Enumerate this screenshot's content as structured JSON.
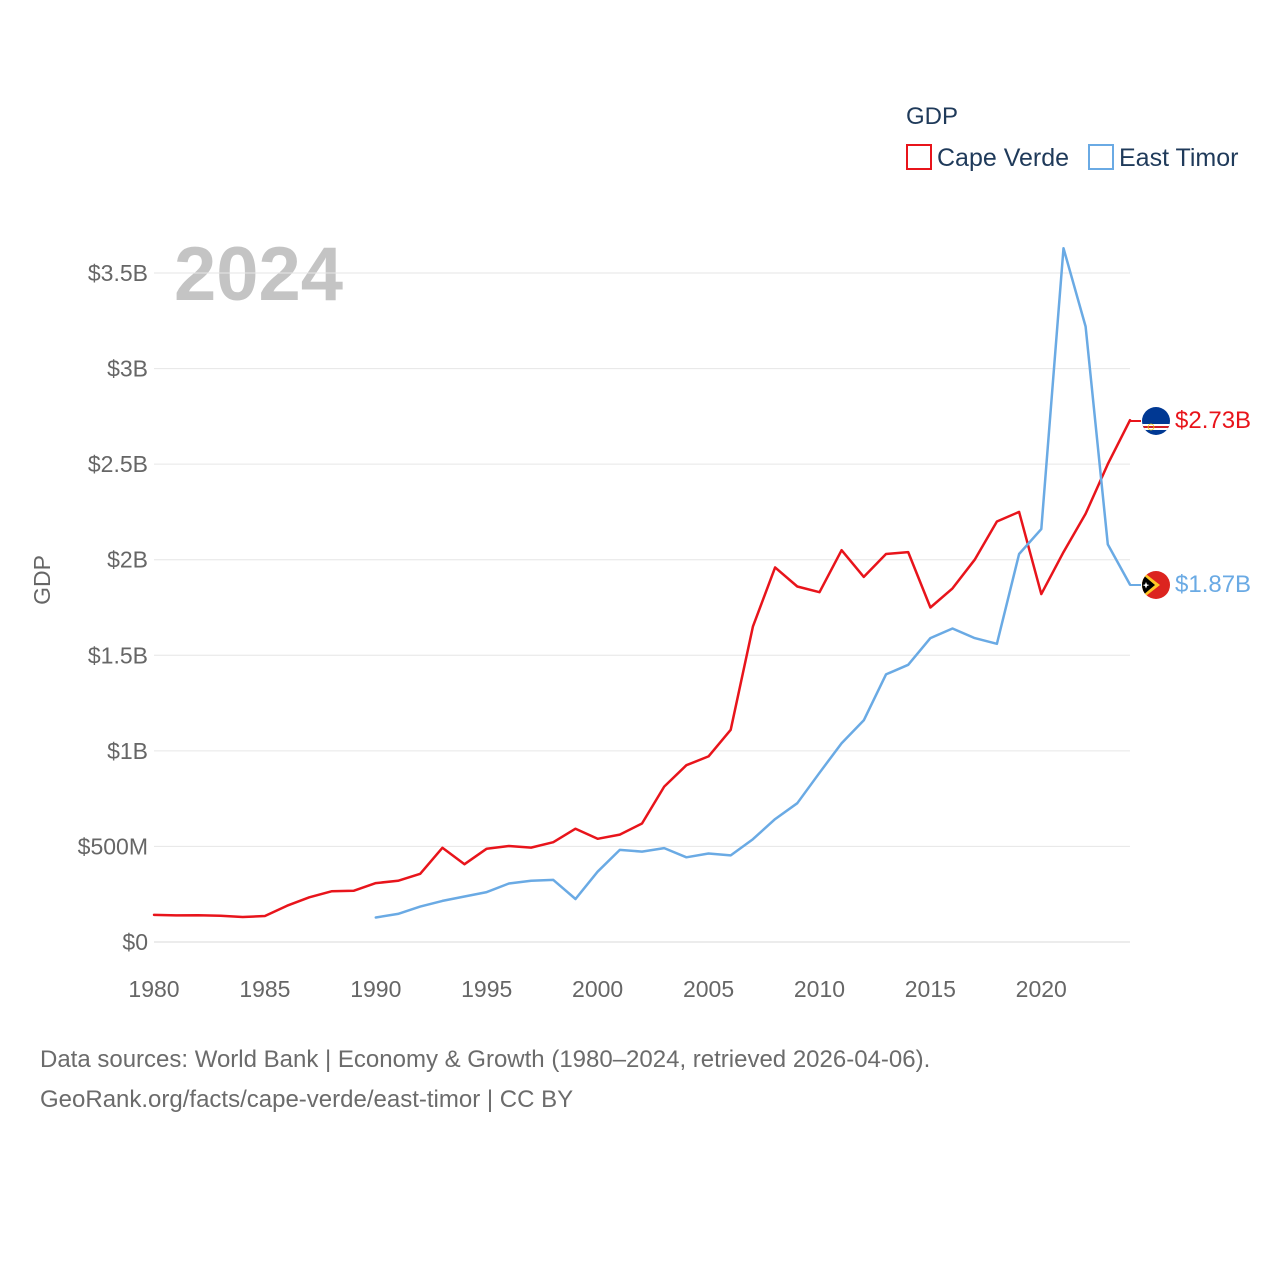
{
  "chart_data": {
    "type": "line",
    "ylabel": "GDP",
    "legend_title": "GDP",
    "legend_position": "top-right",
    "year_label": "2024",
    "ylim": [
      0,
      3500000000
    ],
    "xlim": [
      1980,
      2024
    ],
    "y_ticks": [
      {
        "value": 0,
        "label": "$0"
      },
      {
        "value": 500000000,
        "label": "$500M"
      },
      {
        "value": 1000000000,
        "label": "$1B"
      },
      {
        "value": 1500000000,
        "label": "$1.5B"
      },
      {
        "value": 2000000000,
        "label": "$2B"
      },
      {
        "value": 2500000000,
        "label": "$2.5B"
      },
      {
        "value": 3000000000,
        "label": "$3B"
      },
      {
        "value": 3500000000,
        "label": "$3.5B"
      }
    ],
    "x_ticks": [
      {
        "value": 1980,
        "label": "1980"
      },
      {
        "value": 1985,
        "label": "1985"
      },
      {
        "value": 1990,
        "label": "1990"
      },
      {
        "value": 1995,
        "label": "1995"
      },
      {
        "value": 2000,
        "label": "2000"
      },
      {
        "value": 2005,
        "label": "2005"
      },
      {
        "value": 2010,
        "label": "2010"
      },
      {
        "value": 2015,
        "label": "2015"
      },
      {
        "value": 2020,
        "label": "2020"
      }
    ],
    "grid": true,
    "series": [
      {
        "name": "Cape Verde",
        "color": "#e8141b",
        "end_label": "$2.73B",
        "flag": "cape-verde-flag-icon",
        "x": [
          1980,
          1981,
          1982,
          1983,
          1984,
          1985,
          1986,
          1987,
          1988,
          1989,
          1990,
          1991,
          1992,
          1993,
          1994,
          1995,
          1996,
          1997,
          1998,
          1999,
          2000,
          2001,
          2002,
          2003,
          2004,
          2005,
          2006,
          2007,
          2008,
          2009,
          2010,
          2011,
          2012,
          2013,
          2014,
          2015,
          2016,
          2017,
          2018,
          2019,
          2020,
          2021,
          2022,
          2023,
          2024
        ],
        "values": [
          142000000,
          139000000,
          140000000,
          137000000,
          131000000,
          136000000,
          190000000,
          234000000,
          265000000,
          268000000,
          308000000,
          320000000,
          357000000,
          493000000,
          407000000,
          488000000,
          502000000,
          494000000,
          522000000,
          593000000,
          540000000,
          562000000,
          620000000,
          813000000,
          925000000,
          971000000,
          1110000000,
          1650000000,
          1960000000,
          1860000000,
          1830000000,
          2050000000,
          1910000000,
          2030000000,
          2040000000,
          1750000000,
          1850000000,
          2000000000,
          2200000000,
          2250000000,
          1820000000,
          2040000000,
          2240000000,
          2500000000,
          2730000000
        ]
      },
      {
        "name": "East Timor",
        "color": "#6aaae4",
        "end_label": "$1.87B",
        "flag": "east-timor-flag-icon",
        "x": [
          1990,
          1991,
          1992,
          1993,
          1994,
          1995,
          1996,
          1997,
          1998,
          1999,
          2000,
          2001,
          2002,
          2003,
          2004,
          2005,
          2006,
          2007,
          2008,
          2009,
          2010,
          2011,
          2012,
          2013,
          2014,
          2015,
          2016,
          2017,
          2018,
          2019,
          2020,
          2021,
          2022,
          2023,
          2024
        ],
        "values": [
          128000000,
          147000000,
          185000000,
          215000000,
          238000000,
          261000000,
          306000000,
          320000000,
          325000000,
          225000000,
          368000000,
          482000000,
          473000000,
          491000000,
          443000000,
          463000000,
          453000000,
          538000000,
          643000000,
          726000000,
          885000000,
          1040000000,
          1160000000,
          1400000000,
          1450000000,
          1590000000,
          1640000000,
          1590000000,
          1560000000,
          2030000000,
          2160000000,
          3630000000,
          3220000000,
          2080000000,
          1870000000
        ]
      }
    ]
  },
  "footer": {
    "line1": "Data sources: World Bank | Economy & Growth (1980–2024, retrieved 2026-04-06).",
    "line2": "GeoRank.org/facts/cape-verde/east-timor | CC BY"
  }
}
